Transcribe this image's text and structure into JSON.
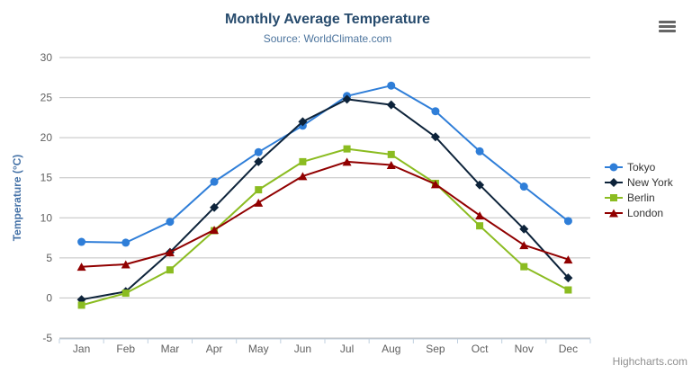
{
  "chart_data": {
    "type": "line",
    "title": "Monthly Average Temperature",
    "subtitle": "Source: WorldClimate.com",
    "categories": [
      "Jan",
      "Feb",
      "Mar",
      "Apr",
      "May",
      "Jun",
      "Jul",
      "Aug",
      "Sep",
      "Oct",
      "Nov",
      "Dec"
    ],
    "xlabel": "",
    "ylabel": "Temperature (°C)",
    "ylim": [
      -5,
      30
    ],
    "ytick_step": 5,
    "grid": true,
    "legend_position": "right",
    "series": [
      {
        "name": "Tokyo",
        "color": "#2f7ed8",
        "marker": "circle",
        "values": [
          7.0,
          6.9,
          9.5,
          14.5,
          18.2,
          21.5,
          25.2,
          26.5,
          23.3,
          18.3,
          13.9,
          9.6
        ]
      },
      {
        "name": "New York",
        "color": "#0d233a",
        "marker": "diamond",
        "values": [
          -0.2,
          0.8,
          5.7,
          11.3,
          17.0,
          22.0,
          24.8,
          24.1,
          20.1,
          14.1,
          8.6,
          2.5
        ]
      },
      {
        "name": "Berlin",
        "color": "#8bbc21",
        "marker": "square",
        "values": [
          -0.9,
          0.6,
          3.5,
          8.4,
          13.5,
          17.0,
          18.6,
          17.9,
          14.3,
          9.0,
          3.9,
          1.0
        ]
      },
      {
        "name": "London",
        "color": "#910000",
        "marker": "triangle",
        "values": [
          3.9,
          4.2,
          5.7,
          8.5,
          11.9,
          15.2,
          17.0,
          16.6,
          14.2,
          10.3,
          6.6,
          4.8
        ]
      }
    ]
  },
  "credits": {
    "label": "Highcharts.com"
  },
  "icons": {
    "context_menu": "hamburger-icon"
  },
  "colors": {
    "title": "#274b6d",
    "subtitle": "#4d759e",
    "axis_title": "#4572a7",
    "tick_label": "#606060",
    "grid": "#c0c0c0",
    "axis_line": "#c0d0e0",
    "legend_text": "#333333",
    "credits": "#909090",
    "menu_icon": "#666666",
    "background": "#ffffff"
  }
}
